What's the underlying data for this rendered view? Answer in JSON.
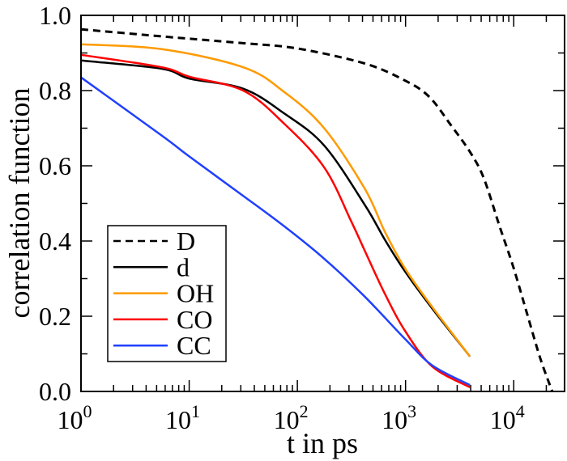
{
  "chart_data": {
    "type": "line",
    "title": "",
    "xlabel": "t in ps",
    "ylabel": "correlation function",
    "xscale": "log",
    "xlim": [
      1,
      29500
    ],
    "ylim": [
      0.0,
      1.0
    ],
    "x_ticks": [
      {
        "base": "10",
        "exp": "0"
      },
      {
        "base": "10",
        "exp": "1"
      },
      {
        "base": "10",
        "exp": "2"
      },
      {
        "base": "10",
        "exp": "3"
      },
      {
        "base": "10",
        "exp": "4"
      }
    ],
    "y_ticks": [
      "0.0",
      "0.2",
      "0.4",
      "0.6",
      "0.8",
      "1.0"
    ],
    "grid": false,
    "legend_position": "bottom-left",
    "series": [
      {
        "name": "D",
        "color": "#000000",
        "dash": "dashed",
        "x": [
          1,
          5.6,
          10,
          31.6,
          100,
          420,
          1000,
          1660,
          2640,
          3940,
          5270,
          7400,
          9900,
          13200,
          17600,
          22700
        ],
        "y": [
          0.963,
          0.944,
          0.938,
          0.926,
          0.912,
          0.872,
          0.826,
          0.783,
          0.707,
          0.637,
          0.568,
          0.439,
          0.331,
          0.209,
          0.088,
          0.0
        ]
      },
      {
        "name": "d",
        "color": "#000000",
        "dash": "solid",
        "x": [
          1,
          5.6,
          10,
          31.6,
          75,
          177,
          420,
          645,
          1000,
          1770,
          3940
        ],
        "y": [
          0.88,
          0.858,
          0.832,
          0.805,
          0.74,
          0.654,
          0.496,
          0.403,
          0.317,
          0.22,
          0.093
        ]
      },
      {
        "name": "OH",
        "color": "#ff9a00",
        "dash": "solid",
        "x": [
          1,
          5.6,
          31.6,
          75,
          177,
          420,
          645,
          1000,
          1770,
          3940
        ],
        "y": [
          0.923,
          0.91,
          0.862,
          0.797,
          0.7,
          0.539,
          0.424,
          0.325,
          0.224,
          0.093
        ]
      },
      {
        "name": "CO",
        "color": "#ff0000",
        "dash": "solid",
        "x": [
          1,
          5.6,
          10,
          31.6,
          75,
          177,
          314,
          420,
          645,
          1000,
          1770,
          3940
        ],
        "y": [
          0.895,
          0.862,
          0.837,
          0.8,
          0.713,
          0.596,
          0.453,
          0.374,
          0.259,
          0.159,
          0.066,
          0.011
        ]
      },
      {
        "name": "CC",
        "color": "#2040ff",
        "dash": "solid",
        "x": [
          1,
          5.6,
          10,
          31.6,
          75,
          177,
          420,
          1000,
          1770,
          3940
        ],
        "y": [
          0.835,
          0.68,
          0.625,
          0.52,
          0.44,
          0.353,
          0.252,
          0.138,
          0.069,
          0.017
        ]
      }
    ]
  }
}
